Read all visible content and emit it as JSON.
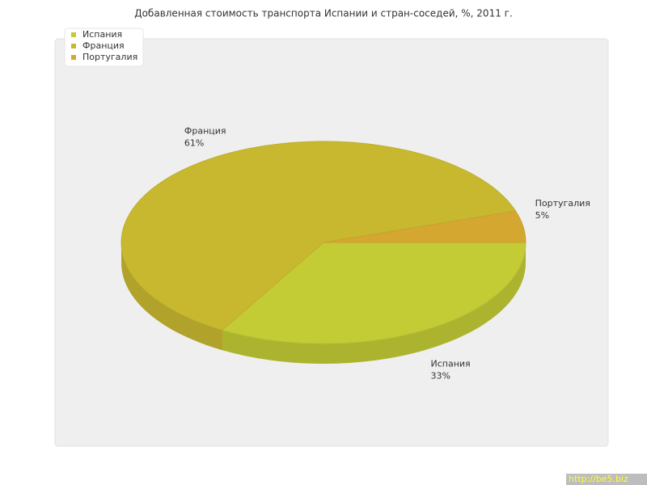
{
  "chart_data": {
    "type": "pie",
    "title": "Добавленная стоимость транспорта Испании и стран-соседей, %, 2011 г.",
    "categories": [
      "Испания",
      "Франция",
      "Португалия"
    ],
    "values": [
      33,
      61,
      5
    ],
    "value_labels": [
      "33%",
      "61%",
      "5%"
    ],
    "colors": [
      "#c3cc35",
      "#c8b830",
      "#d4a830"
    ],
    "legend": "top-left"
  },
  "footer": {
    "link": "http://be5.biz"
  }
}
